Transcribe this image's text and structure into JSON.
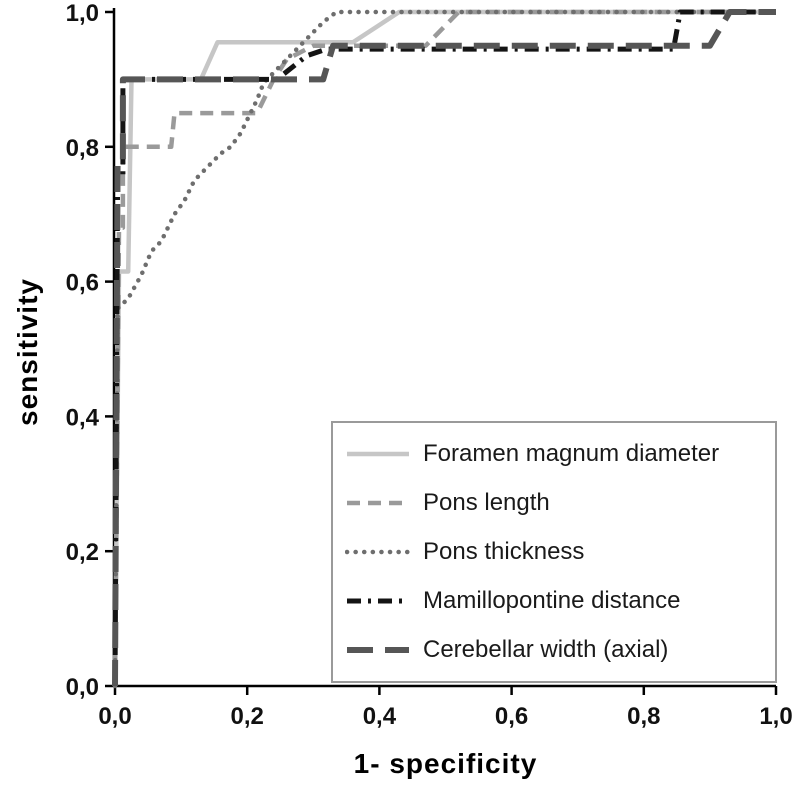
{
  "chart_data": {
    "type": "line",
    "title": "",
    "xlabel": "1- specificity",
    "ylabel": "sensitivity",
    "xlim": [
      0,
      1
    ],
    "ylim": [
      0,
      1
    ],
    "grid": false,
    "legend_position": "inside lower-right",
    "x_ticks": {
      "values": [
        0,
        0.2,
        0.4,
        0.6,
        0.8,
        1.0
      ],
      "labels": [
        "0,0",
        "0,2",
        "0,4",
        "0,6",
        "0,8",
        "1,0"
      ]
    },
    "y_ticks": {
      "values": [
        0,
        0.2,
        0.4,
        0.6,
        0.8,
        1.0
      ],
      "labels": [
        "0,0",
        "0,2",
        "0,4",
        "0,6",
        "0,8",
        "1,0"
      ]
    },
    "series": [
      {
        "name": "Foramen magnum diameter",
        "color": "#c6c6c6",
        "dash": "",
        "dot": false,
        "width": 4.5,
        "points": [
          [
            0,
            0
          ],
          [
            0.006,
            0.615
          ],
          [
            0.02,
            0.615
          ],
          [
            0.025,
            0.9
          ],
          [
            0.13,
            0.9
          ],
          [
            0.155,
            0.955
          ],
          [
            0.36,
            0.955
          ],
          [
            0.43,
            1.0
          ],
          [
            1,
            1
          ]
        ]
      },
      {
        "name": "Pons length",
        "color": "#9a9a9a",
        "dash": "13,8",
        "dot": false,
        "width": 4.5,
        "points": [
          [
            0,
            0
          ],
          [
            0.006,
            0.68
          ],
          [
            0.012,
            0.68
          ],
          [
            0.012,
            0.8
          ],
          [
            0.085,
            0.8
          ],
          [
            0.09,
            0.85
          ],
          [
            0.215,
            0.85
          ],
          [
            0.24,
            0.9
          ],
          [
            0.26,
            0.93
          ],
          [
            0.3,
            0.95
          ],
          [
            0.47,
            0.95
          ],
          [
            0.52,
            1.0
          ],
          [
            1,
            1
          ]
        ]
      },
      {
        "name": "Pons thickness",
        "color": "#6e6e6e",
        "dash": "0.1,8.5",
        "dot": true,
        "width": 4.5,
        "points": [
          [
            0,
            0
          ],
          [
            0.004,
            0.56
          ],
          [
            0.02,
            0.575
          ],
          [
            0.04,
            0.61
          ],
          [
            0.055,
            0.645
          ],
          [
            0.07,
            0.66
          ],
          [
            0.09,
            0.7
          ],
          [
            0.105,
            0.72
          ],
          [
            0.12,
            0.75
          ],
          [
            0.14,
            0.77
          ],
          [
            0.16,
            0.79
          ],
          [
            0.175,
            0.8
          ],
          [
            0.19,
            0.82
          ],
          [
            0.205,
            0.85
          ],
          [
            0.215,
            0.87
          ],
          [
            0.225,
            0.895
          ],
          [
            0.24,
            0.91
          ],
          [
            0.26,
            0.93
          ],
          [
            0.285,
            0.955
          ],
          [
            0.3,
            0.97
          ],
          [
            0.315,
            0.985
          ],
          [
            0.335,
            1.0
          ],
          [
            1,
            1
          ]
        ]
      },
      {
        "name": "Mamillopontine distance",
        "color": "#141414",
        "dash": "14,7,3,7",
        "dot": false,
        "width": 5,
        "points": [
          [
            0,
            0
          ],
          [
            0.004,
            0.755
          ],
          [
            0.012,
            0.755
          ],
          [
            0.012,
            0.9
          ],
          [
            0.245,
            0.9
          ],
          [
            0.29,
            0.935
          ],
          [
            0.32,
            0.945
          ],
          [
            0.845,
            0.945
          ],
          [
            0.855,
            1.0
          ],
          [
            1,
            1
          ]
        ]
      },
      {
        "name": "Cerebellar width (axial)",
        "color": "#565656",
        "dash": "26,12",
        "dot": false,
        "width": 6,
        "points": [
          [
            0,
            0
          ],
          [
            0.004,
            0.78
          ],
          [
            0.012,
            0.78
          ],
          [
            0.012,
            0.9
          ],
          [
            0.315,
            0.9
          ],
          [
            0.33,
            0.95
          ],
          [
            0.9,
            0.95
          ],
          [
            0.93,
            1.0
          ],
          [
            1,
            1
          ]
        ]
      }
    ]
  }
}
